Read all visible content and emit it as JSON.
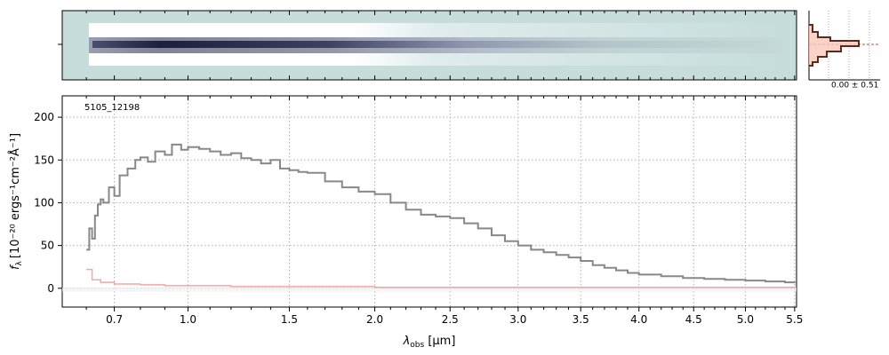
{
  "chart_data": [
    {
      "type": "image",
      "panel": "2d-spectrum",
      "description_visible": "2D spectrum cutout with trace",
      "colors": {
        "background": "#c7dddb",
        "trace_dark": "#1c1f3e",
        "trace_mid": "#9aa1b6",
        "halo": "#ffffff"
      }
    },
    {
      "type": "histogram",
      "panel": "pixel-distribution",
      "annotation": "0.00 ± 0.51",
      "colors": {
        "line": "#5a2a20",
        "fill": "#f7c9b8",
        "guide": "#d04a3a"
      }
    },
    {
      "type": "line",
      "panel": "1d-spectrum",
      "object_label": "5105_12198",
      "xlabel_main": "λ",
      "xlabel_sub": "obs",
      "xlabel_unit": " [μm]",
      "ylabel": "f_λ [10^-20 ergs^-1 cm^-2 Å^-1]",
      "ylabel_text": "[10⁻²⁰ ergs⁻¹cm⁻²Å⁻¹]",
      "ylabel_symbol": "f",
      "ylabel_symbol_sub": "λ",
      "x_ticks": [
        0.7,
        1.0,
        1.5,
        2.0,
        2.5,
        3.0,
        3.5,
        4.0,
        4.5,
        5.0,
        5.5
      ],
      "x_tick_labels": [
        "0.7",
        "1.0",
        "1.5",
        "2.0",
        "2.5",
        "3.0",
        "3.5",
        "4.0",
        "4.5",
        "5.0",
        "5.5"
      ],
      "y_ticks": [
        0,
        50,
        100,
        150,
        200
      ],
      "y_tick_labels": [
        "0",
        "50",
        "100",
        "150",
        "200"
      ],
      "xlim": [
        0.52,
        5.52
      ],
      "ylim": [
        -22,
        225
      ],
      "grid": true,
      "series": [
        {
          "name": "",
          "color": "#888888",
          "x": [
            0.6,
            0.61,
            0.62,
            0.63,
            0.64,
            0.65,
            0.66,
            0.68,
            0.7,
            0.72,
            0.75,
            0.78,
            0.8,
            0.83,
            0.86,
            0.9,
            0.93,
            0.97,
            1.0,
            1.05,
            1.1,
            1.15,
            1.2,
            1.25,
            1.3,
            1.35,
            1.4,
            1.45,
            1.5,
            1.55,
            1.6,
            1.7,
            1.8,
            1.9,
            2.0,
            2.1,
            2.2,
            2.3,
            2.4,
            2.5,
            2.6,
            2.7,
            2.8,
            2.9,
            3.0,
            3.1,
            3.2,
            3.3,
            3.4,
            3.5,
            3.6,
            3.7,
            3.8,
            3.9,
            4.0,
            4.2,
            4.4,
            4.6,
            4.8,
            5.0,
            5.2,
            5.4,
            5.5
          ],
          "y": [
            45,
            70,
            58,
            85,
            98,
            104,
            100,
            118,
            108,
            132,
            140,
            150,
            153,
            148,
            160,
            156,
            168,
            162,
            165,
            163,
            160,
            156,
            158,
            152,
            150,
            146,
            150,
            140,
            138,
            136,
            135,
            125,
            118,
            113,
            110,
            100,
            92,
            86,
            84,
            82,
            76,
            70,
            62,
            55,
            50,
            45,
            42,
            39,
            36,
            32,
            27,
            24,
            21,
            18,
            16,
            14,
            12,
            11,
            10,
            9,
            8,
            7,
            8
          ]
        },
        {
          "name": "",
          "color": "#f4a6a6",
          "x": [
            0.6,
            0.62,
            0.65,
            0.7,
            0.8,
            0.9,
            1.0,
            1.2,
            1.5,
            2.0,
            2.5,
            3.0,
            3.5,
            4.0,
            4.5,
            5.0,
            5.5
          ],
          "y": [
            22,
            10,
            7,
            5,
            4,
            3,
            3,
            2,
            2,
            1,
            1,
            1,
            1,
            1,
            1,
            1,
            2
          ]
        }
      ]
    }
  ]
}
